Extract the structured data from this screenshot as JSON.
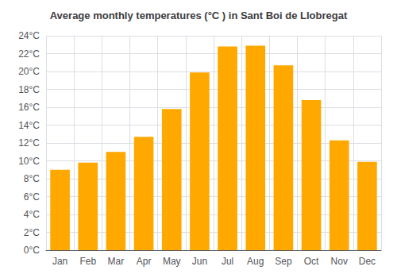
{
  "chart_data": {
    "type": "bar",
    "title": "Average monthly temperatures (°C ) in Sant Boi de Llobregat",
    "categories": [
      "Jan",
      "Feb",
      "Mar",
      "Apr",
      "May",
      "Jun",
      "Jul",
      "Aug",
      "Sep",
      "Oct",
      "Nov",
      "Dec"
    ],
    "values": [
      9.0,
      9.8,
      11.0,
      12.7,
      15.8,
      19.9,
      22.8,
      22.9,
      20.7,
      16.8,
      12.3,
      9.9
    ],
    "color": "#FFA800",
    "ylim": [
      0,
      24
    ],
    "yticks": [
      {
        "value": 0,
        "label": "0°C"
      },
      {
        "value": 2,
        "label": "2°C"
      },
      {
        "value": 4,
        "label": "4°C"
      },
      {
        "value": 6,
        "label": "6°C"
      },
      {
        "value": 8,
        "label": "8°C"
      },
      {
        "value": 10,
        "label": "10°C"
      },
      {
        "value": 12,
        "label": "12°C"
      },
      {
        "value": 14,
        "label": "14°C"
      },
      {
        "value": 16,
        "label": "16°C"
      },
      {
        "value": 18,
        "label": "18°C"
      },
      {
        "value": 20,
        "label": "20°C"
      },
      {
        "value": 22,
        "label": "22°C"
      },
      {
        "value": 24,
        "label": "24°C"
      }
    ],
    "grid": true
  }
}
